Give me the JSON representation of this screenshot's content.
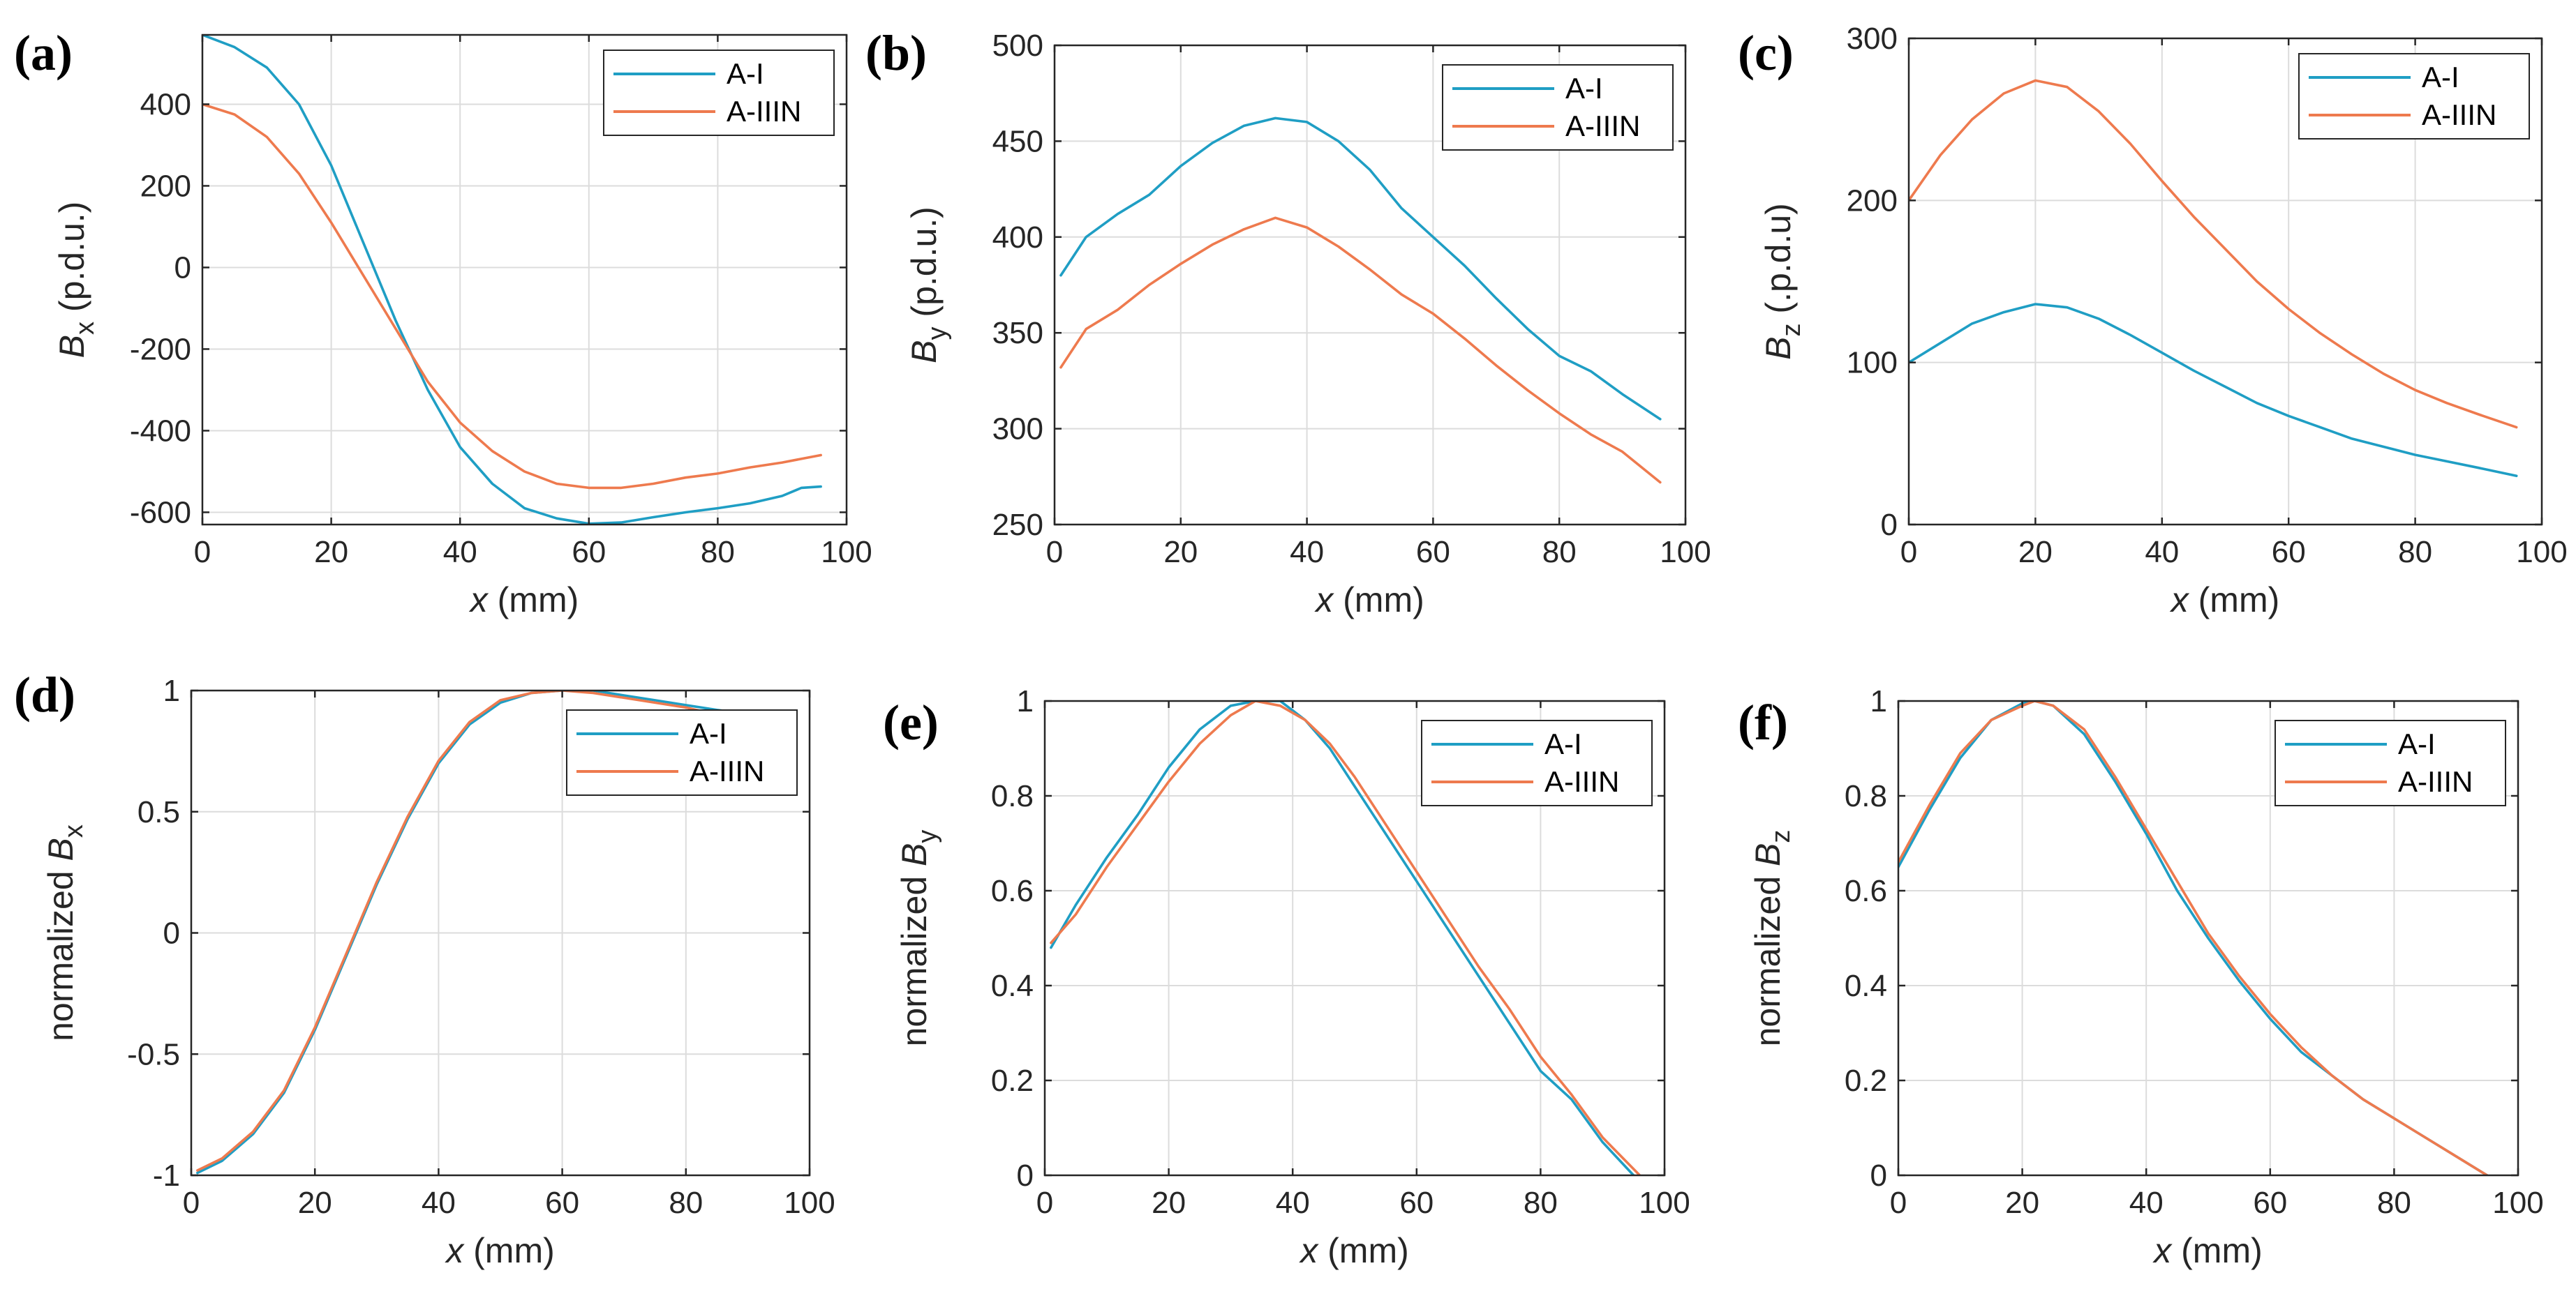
{
  "colors": {
    "A-I": "#1f9ec4",
    "A-IIIN": "#ee7a4e"
  },
  "chart_data": [
    {
      "id": "a",
      "type": "line",
      "panel_label": "(a)",
      "title": "",
      "xlabel": {
        "var": "x",
        "unit": " (mm)"
      },
      "ylabel": {
        "prefix": "",
        "var": "B",
        "sub": "x",
        "unit": " (p.d.u.)"
      },
      "xlim": [
        0,
        100
      ],
      "ylim": [
        -630,
        570
      ],
      "xticks": [
        0,
        20,
        40,
        60,
        80,
        100
      ],
      "yticks": [
        -600,
        -400,
        -200,
        0,
        200,
        400
      ],
      "legend": {
        "position": "top-right",
        "entries": [
          "A-I",
          "A-IIIN"
        ]
      },
      "series": [
        {
          "name": "A-I",
          "x": [
            0,
            5,
            10,
            15,
            20,
            25,
            30,
            35,
            40,
            45,
            50,
            55,
            60,
            65,
            70,
            75,
            80,
            85,
            90,
            93,
            96
          ],
          "values": [
            570,
            540,
            490,
            400,
            250,
            60,
            -130,
            -300,
            -440,
            -530,
            -590,
            -615,
            -628,
            -625,
            -612,
            -600,
            -590,
            -578,
            -560,
            -540,
            -537
          ]
        },
        {
          "name": "A-IIIN",
          "x": [
            0,
            5,
            10,
            15,
            20,
            25,
            30,
            35,
            40,
            45,
            50,
            55,
            60,
            65,
            70,
            75,
            80,
            85,
            90,
            96
          ],
          "values": [
            400,
            375,
            320,
            230,
            110,
            -20,
            -150,
            -280,
            -380,
            -450,
            -500,
            -530,
            -540,
            -540,
            -530,
            -515,
            -505,
            -490,
            -478,
            -460
          ]
        }
      ]
    },
    {
      "id": "b",
      "type": "line",
      "panel_label": "(b)",
      "title": "",
      "xlabel": {
        "var": "x",
        "unit": " (mm)"
      },
      "ylabel": {
        "prefix": "",
        "var": "B",
        "sub": "y",
        "unit": " (p.d.u.)"
      },
      "xlim": [
        0,
        100
      ],
      "ylim": [
        250,
        500
      ],
      "xticks": [
        0,
        20,
        40,
        60,
        80,
        100
      ],
      "yticks": [
        250,
        300,
        350,
        400,
        450,
        500
      ],
      "legend": {
        "position": "top-right",
        "entries": [
          "A-I",
          "A-IIIN"
        ]
      },
      "series": [
        {
          "name": "A-I",
          "x": [
            1,
            5,
            10,
            15,
            20,
            25,
            30,
            35,
            40,
            45,
            50,
            55,
            60,
            65,
            70,
            75,
            80,
            85,
            90,
            96
          ],
          "values": [
            380,
            400,
            412,
            422,
            437,
            449,
            458,
            462,
            460,
            450,
            435,
            415,
            400,
            385,
            368,
            352,
            338,
            330,
            318,
            305
          ]
        },
        {
          "name": "A-IIIN",
          "x": [
            1,
            5,
            10,
            15,
            20,
            25,
            30,
            35,
            40,
            45,
            50,
            55,
            60,
            65,
            70,
            75,
            80,
            85,
            90,
            96
          ],
          "values": [
            332,
            352,
            362,
            375,
            386,
            396,
            404,
            410,
            405,
            395,
            383,
            370,
            360,
            347,
            333,
            320,
            308,
            297,
            288,
            272
          ]
        }
      ]
    },
    {
      "id": "c",
      "type": "line",
      "panel_label": "(c)",
      "title": "",
      "xlabel": {
        "var": "x",
        "unit": " (mm)"
      },
      "ylabel": {
        "prefix": "",
        "var": "B",
        "sub": "z",
        "unit": " (.p.d.u)"
      },
      "xlim": [
        0,
        100
      ],
      "ylim": [
        0,
        300
      ],
      "xticks": [
        0,
        20,
        40,
        60,
        80,
        100
      ],
      "yticks": [
        0,
        100,
        200,
        300
      ],
      "legend": {
        "position": "top-right",
        "entries": [
          "A-I",
          "A-IIIN"
        ]
      },
      "series": [
        {
          "name": "A-I",
          "x": [
            0,
            5,
            10,
            15,
            20,
            25,
            30,
            35,
            40,
            45,
            50,
            55,
            60,
            65,
            70,
            75,
            80,
            85,
            90,
            96
          ],
          "values": [
            100,
            112,
            124,
            131,
            136,
            134,
            127,
            117,
            106,
            95,
            85,
            75,
            67,
            60,
            53,
            48,
            43,
            39,
            35,
            30
          ]
        },
        {
          "name": "A-IIIN",
          "x": [
            0,
            5,
            10,
            15,
            20,
            25,
            30,
            35,
            40,
            45,
            50,
            55,
            60,
            65,
            70,
            75,
            80,
            85,
            90,
            96
          ],
          "values": [
            200,
            228,
            250,
            266,
            274,
            270,
            255,
            235,
            212,
            190,
            170,
            150,
            133,
            118,
            105,
            93,
            83,
            75,
            68,
            60
          ]
        }
      ]
    },
    {
      "id": "d",
      "type": "line",
      "panel_label": "(d)",
      "title": "",
      "xlabel": {
        "var": "x",
        "unit": " (mm)"
      },
      "ylabel": {
        "prefix": "normalized  ",
        "var": "B",
        "sub": "x",
        "unit": ""
      },
      "xlim": [
        0,
        100
      ],
      "ylim": [
        -1,
        1
      ],
      "xticks": [
        0,
        20,
        40,
        60,
        80,
        100
      ],
      "yticks": [
        -1,
        -0.5,
        0,
        0.5,
        1
      ],
      "legend": {
        "position": "top-right",
        "entries": [
          "A-I",
          "A-IIIN"
        ]
      },
      "series": [
        {
          "name": "A-I",
          "x": [
            1,
            5,
            10,
            15,
            20,
            25,
            30,
            35,
            40,
            45,
            50,
            55,
            60,
            65,
            70,
            75,
            80,
            85,
            88
          ],
          "values": [
            -0.99,
            -0.94,
            -0.83,
            -0.66,
            -0.4,
            -0.1,
            0.2,
            0.47,
            0.7,
            0.86,
            0.95,
            0.99,
            1.0,
            1.0,
            0.98,
            0.96,
            0.94,
            0.92,
            0.91
          ]
        },
        {
          "name": "A-IIIN",
          "x": [
            1,
            5,
            10,
            15,
            20,
            25,
            30,
            35,
            40,
            45,
            50,
            55,
            60,
            65,
            70,
            75,
            80,
            85
          ],
          "values": [
            -0.98,
            -0.93,
            -0.82,
            -0.65,
            -0.39,
            -0.09,
            0.21,
            0.48,
            0.71,
            0.87,
            0.96,
            0.99,
            1.0,
            0.99,
            0.97,
            0.95,
            0.93,
            0.9
          ]
        }
      ]
    },
    {
      "id": "e",
      "type": "line",
      "panel_label": "(e)",
      "title": "",
      "xlabel": {
        "var": "x",
        "unit": " (mm)"
      },
      "ylabel": {
        "prefix": "normalized  ",
        "var": "B",
        "sub": "y",
        "unit": ""
      },
      "xlim": [
        0,
        100
      ],
      "ylim": [
        0,
        1
      ],
      "xticks": [
        0,
        20,
        40,
        60,
        80,
        100
      ],
      "yticks": [
        0,
        0.2,
        0.4,
        0.6,
        0.8,
        1
      ],
      "legend": {
        "position": "top-right",
        "entries": [
          "A-I",
          "A-IIIN"
        ]
      },
      "series": [
        {
          "name": "A-I",
          "x": [
            1,
            5,
            10,
            15,
            20,
            25,
            30,
            34,
            38,
            42,
            46,
            50,
            55,
            60,
            65,
            70,
            75,
            80,
            85,
            90,
            95
          ],
          "values": [
            0.48,
            0.57,
            0.67,
            0.76,
            0.86,
            0.94,
            0.99,
            1.0,
            1.0,
            0.96,
            0.9,
            0.82,
            0.72,
            0.62,
            0.52,
            0.42,
            0.32,
            0.22,
            0.16,
            0.07,
            0.0
          ]
        },
        {
          "name": "A-IIIN",
          "x": [
            1,
            5,
            10,
            15,
            20,
            25,
            30,
            34,
            38,
            42,
            46,
            50,
            55,
            60,
            65,
            70,
            75,
            80,
            85,
            90,
            96
          ],
          "values": [
            0.49,
            0.55,
            0.65,
            0.74,
            0.83,
            0.91,
            0.97,
            1.0,
            0.99,
            0.96,
            0.91,
            0.84,
            0.74,
            0.64,
            0.54,
            0.44,
            0.35,
            0.25,
            0.17,
            0.08,
            0.0
          ]
        }
      ]
    },
    {
      "id": "f",
      "type": "line",
      "panel_label": "(f)",
      "title": "",
      "xlabel": {
        "var": "x",
        "unit": " (mm)"
      },
      "ylabel": {
        "prefix": "normalized  ",
        "var": "B",
        "sub": "z",
        "unit": ""
      },
      "xlim": [
        0,
        100
      ],
      "ylim": [
        0,
        1
      ],
      "xticks": [
        0,
        20,
        40,
        60,
        80,
        100
      ],
      "yticks": [
        0,
        0.2,
        0.4,
        0.6,
        0.8,
        1
      ],
      "legend": {
        "position": "top-right",
        "entries": [
          "A-I",
          "A-IIIN"
        ]
      },
      "series": [
        {
          "name": "A-I",
          "x": [
            0,
            5,
            10,
            15,
            20,
            22,
            25,
            30,
            35,
            40,
            45,
            50,
            55,
            60,
            65,
            70,
            75,
            80,
            85,
            90,
            95
          ],
          "values": [
            0.65,
            0.77,
            0.88,
            0.96,
            0.995,
            1.0,
            0.99,
            0.93,
            0.83,
            0.72,
            0.6,
            0.5,
            0.41,
            0.33,
            0.26,
            0.21,
            0.16,
            0.12,
            0.08,
            0.04,
            0.0
          ]
        },
        {
          "name": "A-IIIN",
          "x": [
            0,
            5,
            10,
            15,
            20,
            22,
            25,
            30,
            35,
            40,
            45,
            50,
            55,
            60,
            65,
            70,
            75,
            80,
            85,
            90,
            95
          ],
          "values": [
            0.66,
            0.78,
            0.89,
            0.96,
            0.99,
            1.0,
            0.99,
            0.94,
            0.84,
            0.73,
            0.62,
            0.51,
            0.42,
            0.34,
            0.27,
            0.21,
            0.16,
            0.12,
            0.08,
            0.04,
            0.0
          ]
        }
      ]
    }
  ]
}
